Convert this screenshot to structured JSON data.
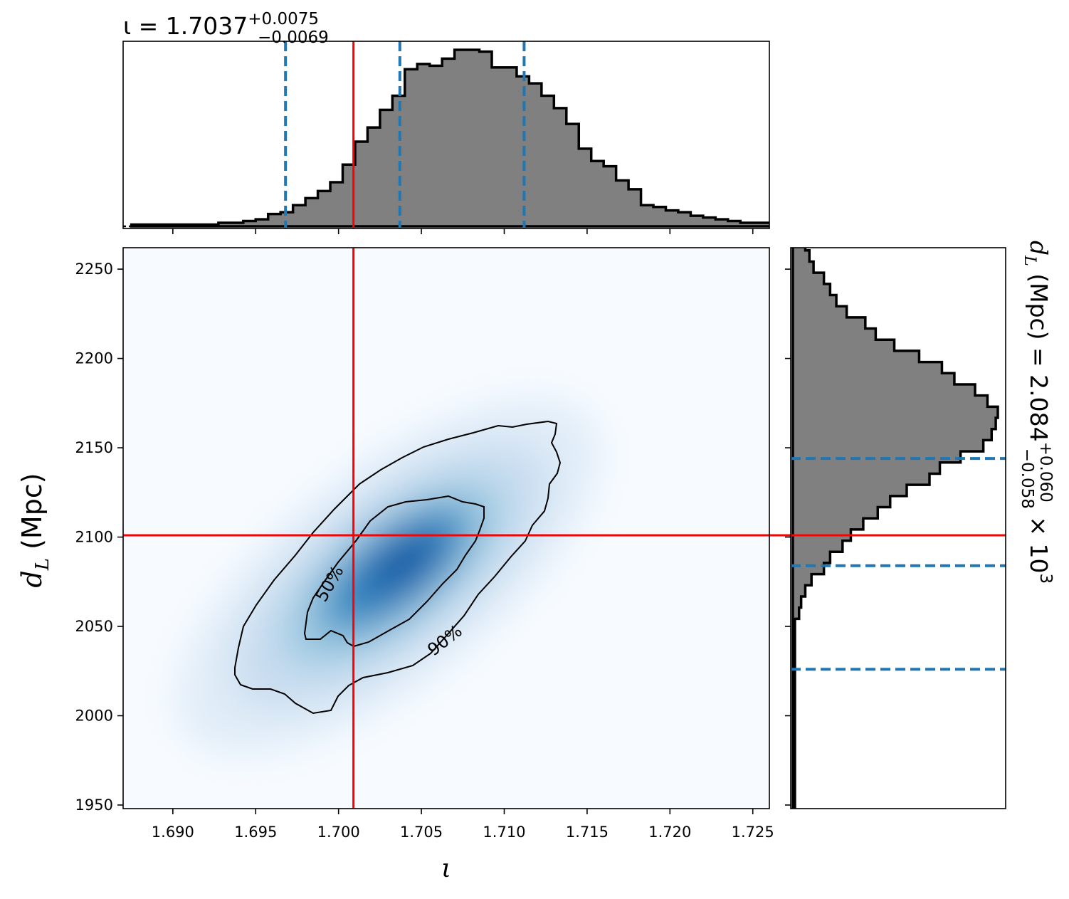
{
  "chart_data": {
    "type": "corner",
    "top_title": {
      "main": "ι = 1.7037",
      "sup": "+0.0075",
      "sub": "−0.0069"
    },
    "right_title": {
      "main": "d",
      "sub_l": "L",
      "mid": " (Mpc) = 2.084",
      "sup": "+0.060",
      "sub": "−0.058",
      "tail": " × 10",
      "exp": "3"
    },
    "xlabel": "ι",
    "ylabel": {
      "main": "d",
      "sub": "L",
      "unit": " (Mpc)"
    },
    "xlim": [
      1.687,
      1.726
    ],
    "ylim": [
      1948,
      2262
    ],
    "xticks": [
      "1.690",
      "1.695",
      "1.700",
      "1.705",
      "1.710",
      "1.715",
      "1.720",
      "1.725"
    ],
    "yticks": [
      "1950",
      "2000",
      "2050",
      "2100",
      "2150",
      "2200",
      "2250"
    ],
    "truth": {
      "iota": 1.7009,
      "dL": 2101
    },
    "iota_quantiles": [
      1.6968,
      1.7037,
      1.7112
    ],
    "dL_quantiles": [
      2026,
      2084,
      2144
    ],
    "contour_labels": [
      "50%",
      "90%"
    ],
    "hist_iota": {
      "edges_start": 1.6875,
      "bin_width": 0.00075,
      "counts": [
        1,
        1,
        1,
        1,
        1,
        1,
        1,
        2,
        2,
        3,
        4,
        7,
        8,
        12,
        16,
        20,
        25,
        35,
        48,
        56,
        66,
        74,
        89,
        92,
        91,
        95,
        100,
        100,
        99,
        90,
        90,
        85,
        81,
        74,
        67,
        58,
        44,
        37,
        34,
        26,
        21,
        12,
        11,
        9,
        8,
        6,
        5,
        4,
        3,
        2,
        2,
        2,
        1,
        1,
        1,
        1,
        1,
        1,
        1,
        1,
        1,
        1,
        1,
        1,
        0
      ]
    },
    "hist_dL": {
      "edges_start": 1948,
      "bin_width": 6.25,
      "counts": [
        1,
        1,
        1,
        1,
        1,
        1,
        1,
        1,
        1,
        1,
        1,
        1,
        1,
        1,
        1,
        1,
        1,
        3,
        4,
        6,
        9,
        15,
        18,
        24,
        28,
        34,
        41,
        47,
        55,
        66,
        71,
        81,
        92,
        96,
        98,
        99,
        94,
        88,
        78,
        72,
        61,
        49,
        40,
        35,
        26,
        21,
        18,
        15,
        10,
        8,
        6,
        4,
        3,
        3,
        2,
        1,
        1,
        1,
        1,
        1,
        0,
        0,
        0,
        0,
        0,
        0
      ]
    },
    "colors": {
      "truth": "#ff0000",
      "quantile": "#1f77b4",
      "hist_fill": "#808080",
      "density": "Blues"
    }
  }
}
